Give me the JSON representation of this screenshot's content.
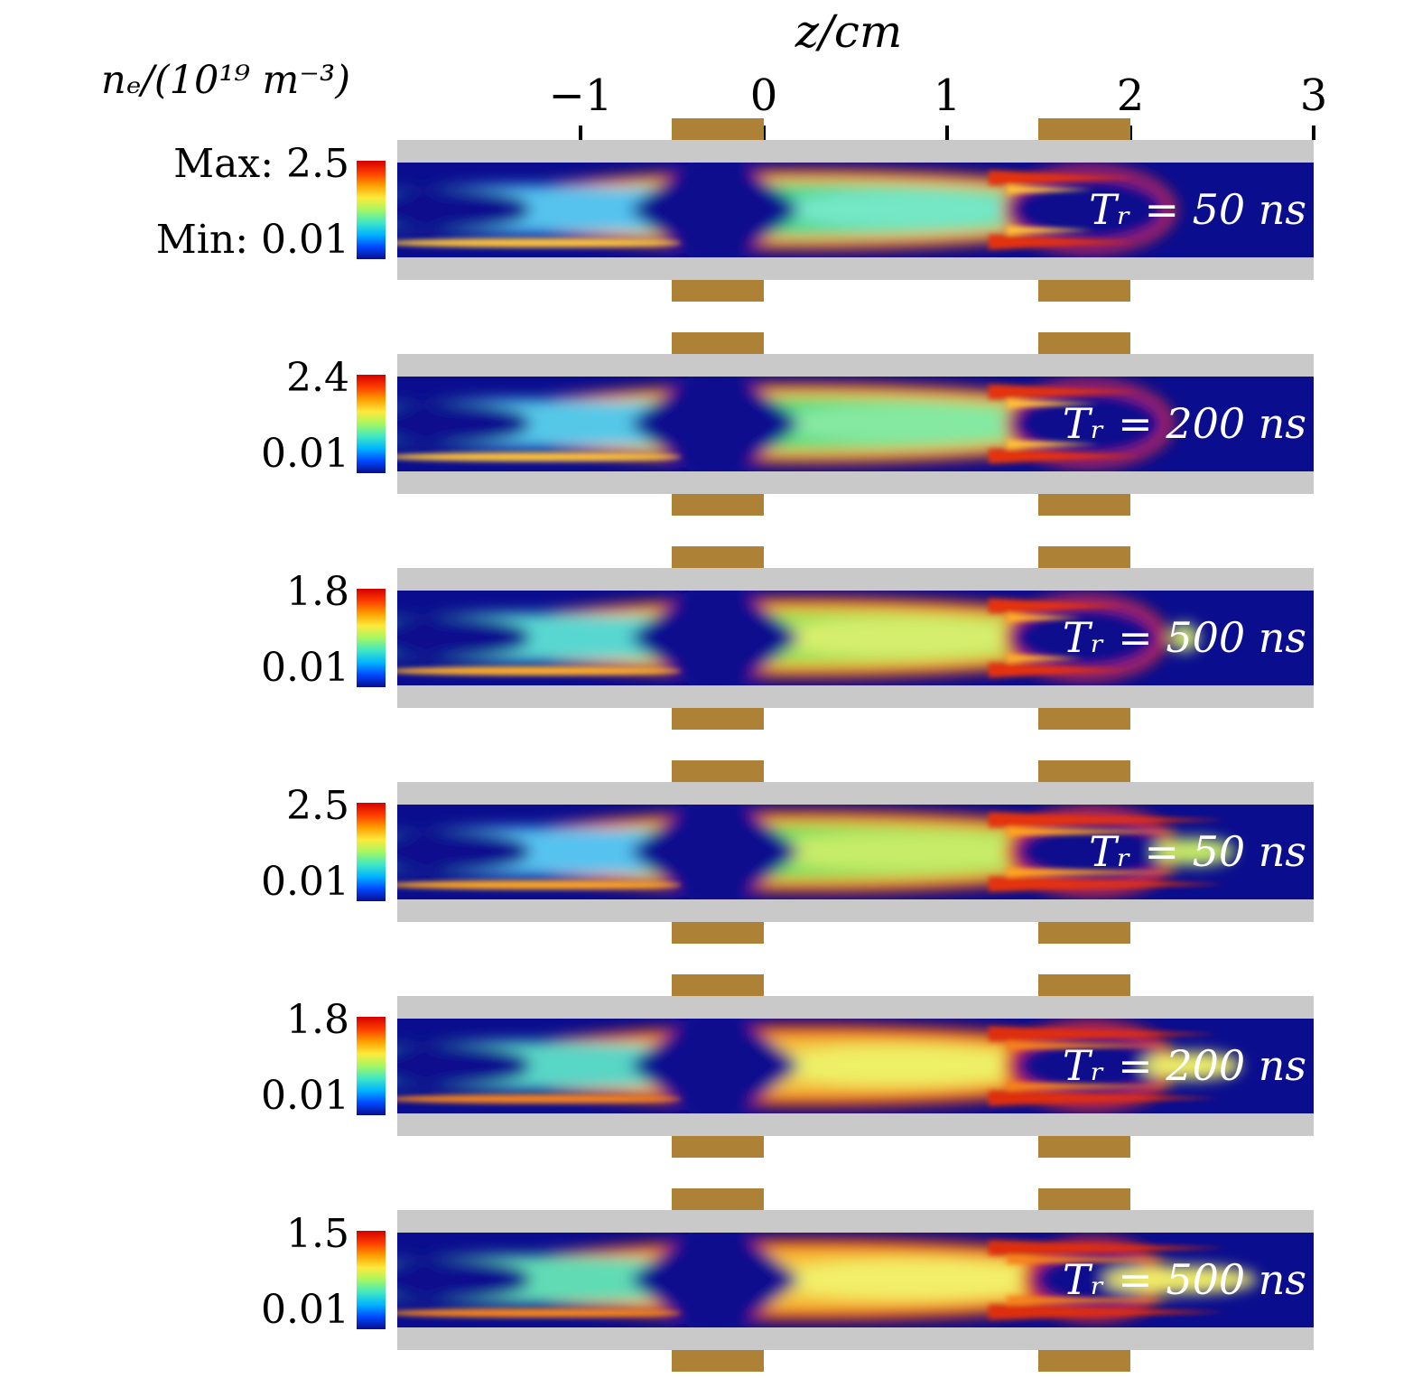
{
  "figure": {
    "axis_title": "z/cm",
    "colorbar_title": "nₑ/(10¹⁹ m⁻³)",
    "axis_ticks": [
      {
        "label": "−1",
        "value": -1
      },
      {
        "label": "0",
        "value": 0
      },
      {
        "label": "1",
        "value": 1
      },
      {
        "label": "2",
        "value": 2
      },
      {
        "label": "3",
        "value": 3
      }
    ]
  },
  "colors": {
    "wall": "#c9c9c9",
    "electrode": "#ad8236",
    "plasma_background": "#0a0d8e",
    "colorbar_stops": [
      "#d40000",
      "#ff3c00",
      "#ff9d00",
      "#ffe93c",
      "#a4f763",
      "#41e8c3",
      "#00b4ff",
      "#0048ff",
      "#0a0d8e"
    ]
  },
  "panels": [
    {
      "rise_time_label": "Tᵣ = 50 ns",
      "max_label": "Max: 2.5",
      "min_label": "Min: 0.01",
      "field": {
        "bg": "#0a0d8e",
        "edge": "#e53008",
        "band2": "#ffc33a",
        "band3": "#43d489",
        "leftBand": "#55c3ee",
        "center": "#74e7c6",
        "envCx": 455,
        "envRx": 365,
        "envRy": 45,
        "centerCx": 560,
        "centerRx": 140,
        "rvCx": 766,
        "rvRx": 88,
        "rvRy": 40,
        "rimW": 8,
        "filX": 820,
        "tongueRx": 0
      }
    },
    {
      "rise_time_label": "Tᵣ = 200 ns",
      "max_label": "2.4",
      "min_label": "0.01",
      "field": {
        "bg": "#0a0d8e",
        "edge": "#e53008",
        "band2": "#ffc23a",
        "band3": "#4fd978",
        "leftBand": "#55c8e8",
        "center": "#86e9a2",
        "envCx": 455,
        "envRx": 365,
        "envRy": 45,
        "centerCx": 565,
        "centerRx": 155,
        "rvCx": 766,
        "rvRx": 85,
        "rvRy": 40,
        "rimW": 8,
        "filX": 825,
        "tongueRx": 0
      }
    },
    {
      "rise_time_label": "Tᵣ = 500 ns",
      "max_label": "1.8",
      "min_label": "0.01",
      "field": {
        "bg": "#0a0d8e",
        "edge": "#e63309",
        "band2": "#ffae2a",
        "band3": "#97e055",
        "leftBand": "#58d7d0",
        "center": "#d6ee6d",
        "envCx": 455,
        "envRx": 368,
        "envRy": 45,
        "centerCx": 560,
        "centerRx": 150,
        "rvCx": 762,
        "rvRx": 82,
        "rvRy": 38,
        "rimW": 9,
        "filX": 808,
        "tongueRx": 16
      }
    },
    {
      "rise_time_label": "Tᵣ = 50 ns",
      "max_label": "2.5",
      "min_label": "0.01",
      "field": {
        "bg": "#0a0d8e",
        "edge": "#e53109",
        "band2": "#ffa524",
        "band3": "#77de5f",
        "leftBand": "#57c2ef",
        "center": "#c7ec68",
        "envCx": 460,
        "envRx": 372,
        "envRy": 46,
        "centerCx": 565,
        "centerRx": 165,
        "rvCx": 770,
        "rvRx": 85,
        "rvRy": 37,
        "rimW": 12,
        "filX": 918,
        "tongueRx": 45
      }
    },
    {
      "rise_time_label": "Tᵣ = 200 ns",
      "max_label": "1.8",
      "min_label": "0.01",
      "field": {
        "bg": "#0a0d8e",
        "edge": "#e02f08",
        "band2": "#f5821e",
        "band3": "#f2c240",
        "leftBand": "#59d6c6",
        "center": "#eef066",
        "envCx": 460,
        "envRx": 372,
        "envRy": 46,
        "centerCx": 560,
        "centerRx": 150,
        "rvCx": 768,
        "rvRx": 84,
        "rvRy": 36,
        "rimW": 13,
        "filX": 910,
        "tongueRx": 55
      }
    },
    {
      "rise_time_label": "Tᵣ = 500 ns",
      "max_label": "1.5",
      "min_label": "0.01",
      "field": {
        "bg": "#0a0d8e",
        "edge": "#de2d07",
        "band2": "#f5831d",
        "band3": "#f5c43d",
        "leftBand": "#61dcb4",
        "center": "#f2ef69",
        "envCx": 465,
        "envRx": 380,
        "envRy": 46,
        "centerCx": 575,
        "centerRx": 160,
        "rvCx": 772,
        "rvRx": 68,
        "rvRy": 33,
        "rimW": 13,
        "filX": 918,
        "tongueRx": 85
      }
    }
  ],
  "chart_data": {
    "type": "heatmap",
    "title": "",
    "xlabel": "z/cm",
    "quantity": "nₑ/(10¹⁹ m⁻³)",
    "colormap": "jet",
    "x_range": [
      -2,
      3
    ],
    "x_ticks": [
      -1,
      0,
      1,
      2,
      3
    ],
    "electrodes_z": [
      [
        -0.5,
        0.0
      ],
      [
        1.5,
        2.0
      ]
    ],
    "panels": [
      {
        "rise_time_ns": 50,
        "max": 2.5,
        "min": 0.01
      },
      {
        "rise_time_ns": 200,
        "max": 2.4,
        "min": 0.01
      },
      {
        "rise_time_ns": 500,
        "max": 1.8,
        "min": 0.01
      },
      {
        "rise_time_ns": 50,
        "max": 2.5,
        "min": 0.01
      },
      {
        "rise_time_ns": 200,
        "max": 1.8,
        "min": 0.01
      },
      {
        "rise_time_ns": 500,
        "max": 1.5,
        "min": 0.01
      }
    ],
    "legend_position": "left-per-panel",
    "grid": false,
    "notes": "Six axial cross-section maps of electron density in a discharge tube; dark-blue voids under the powered electrodes, cyan/green/yellow plasma column, red high-density filaments along the walls. Lower three panels show hotter (more orange/red) distributions."
  }
}
